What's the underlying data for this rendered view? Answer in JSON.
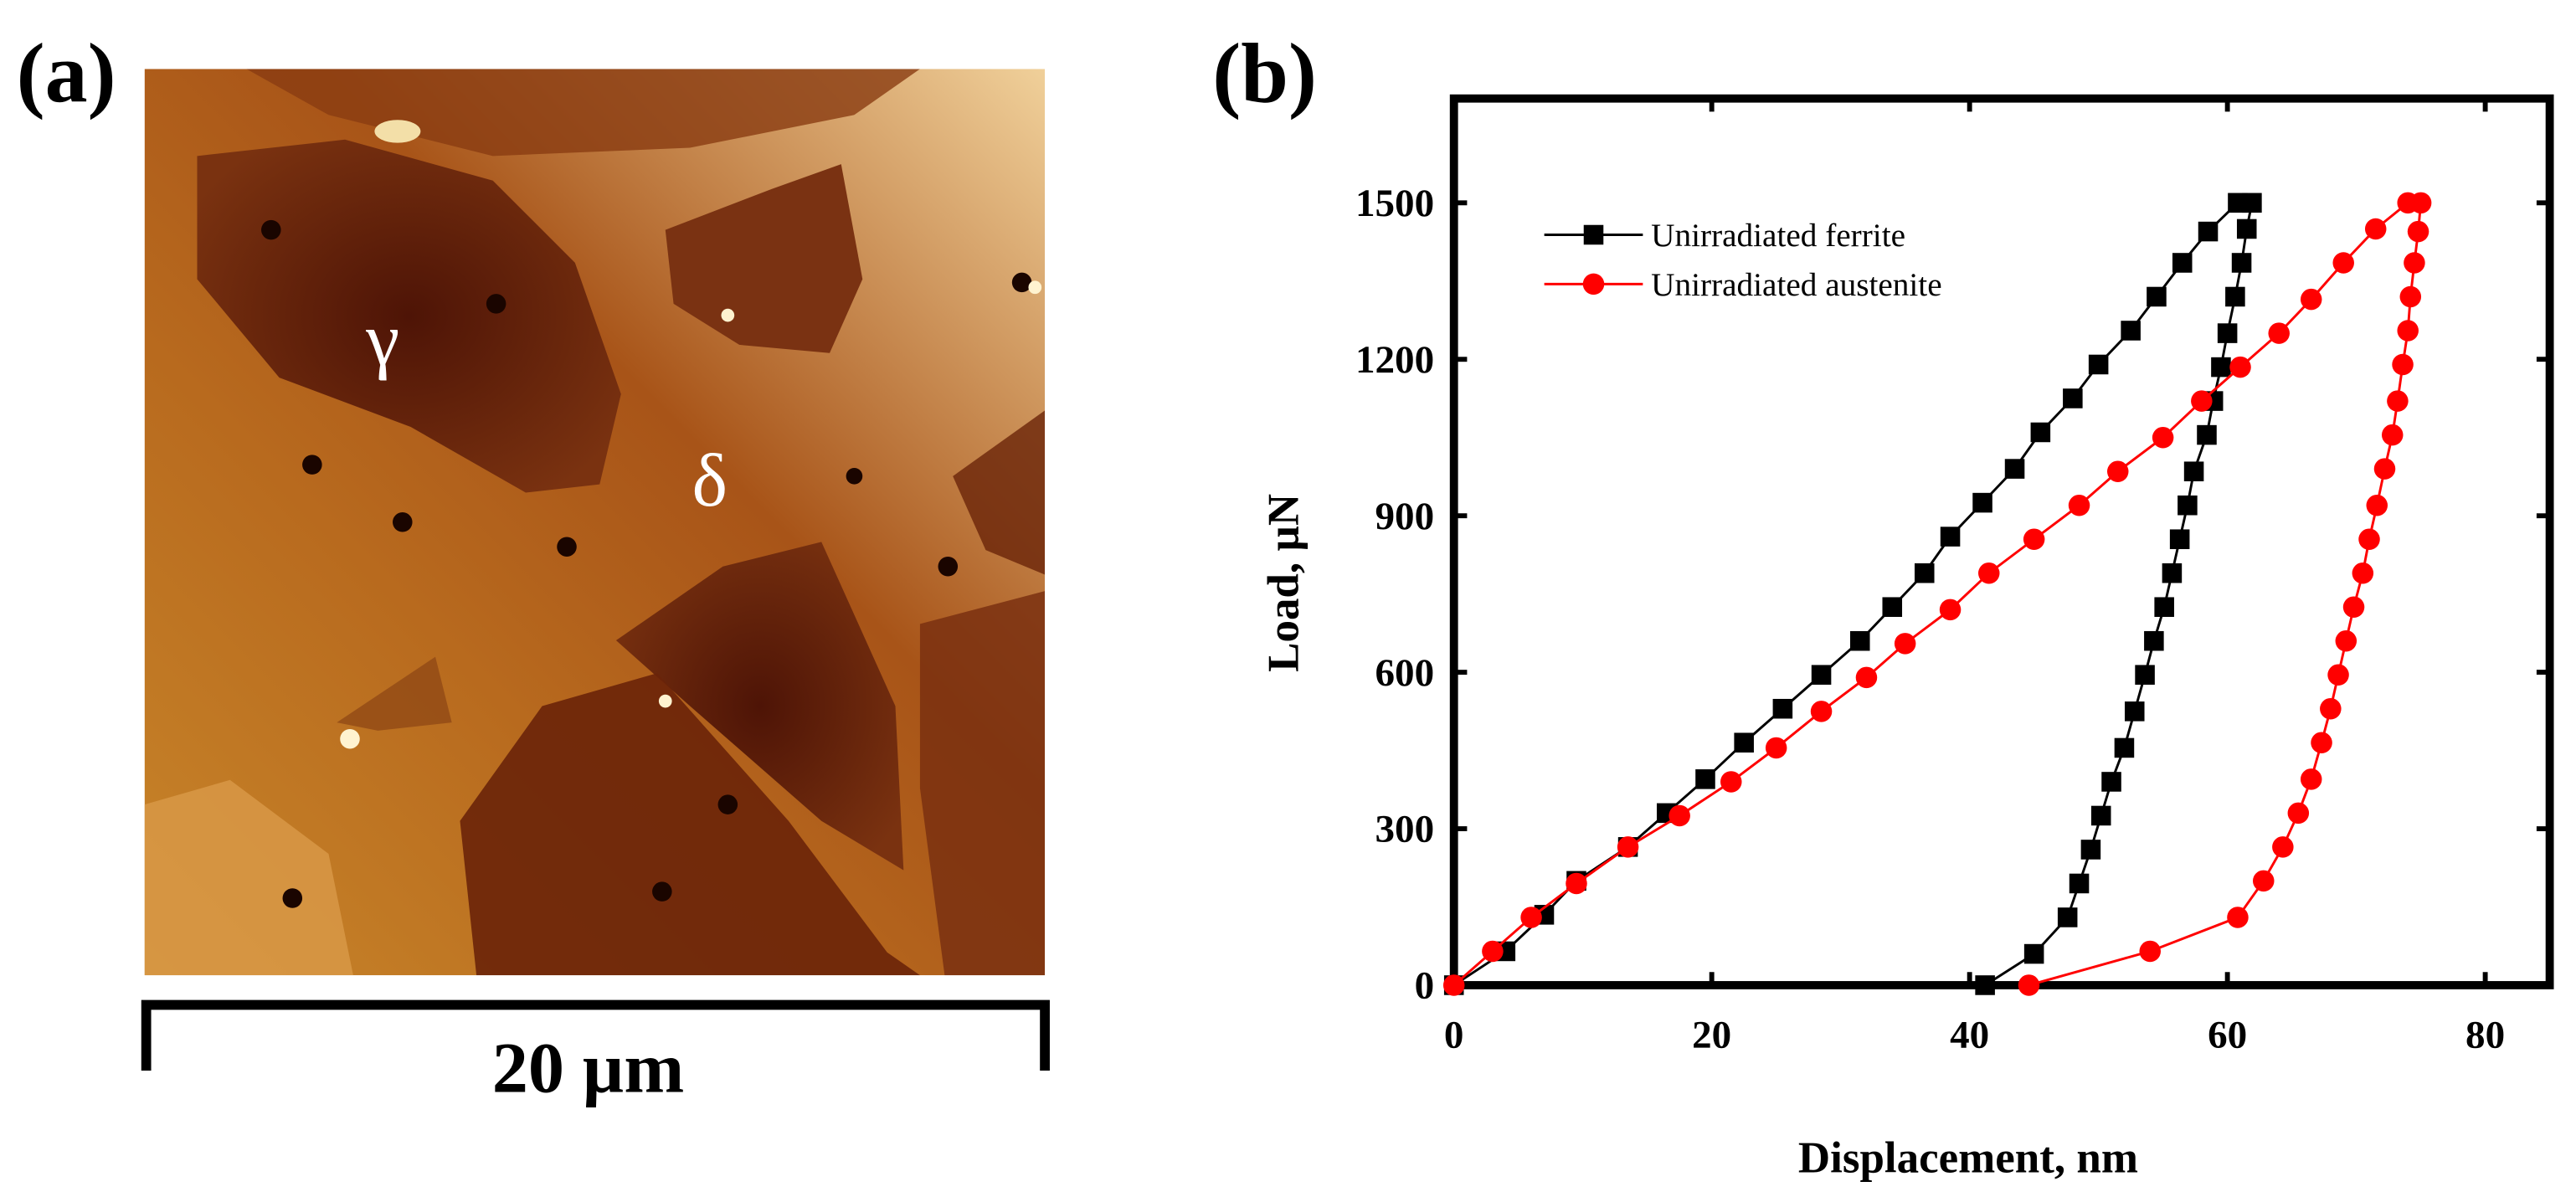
{
  "panel_a": {
    "label": "(a)",
    "annotations": [
      "γ",
      "δ"
    ],
    "scale_bar": "20 µm"
  },
  "chart_data": {
    "type": "line",
    "panel_label": "(b)",
    "x_label": "Displacement, nm",
    "y_label": "Load, µN",
    "xlim": [
      0,
      85
    ],
    "ylim": [
      0,
      1700
    ],
    "xticks": [
      0,
      20,
      40,
      60,
      80
    ],
    "yticks": [
      0,
      300,
      600,
      900,
      1200,
      1500
    ],
    "legend": "upper left",
    "series": [
      {
        "name": "Unirradiated ferrite",
        "color": "#000000",
        "marker": "square",
        "x": [
          0,
          4,
          7,
          9.5,
          13.5,
          16.5,
          19.5,
          22.5,
          25.5,
          28.5,
          31.5,
          34,
          36.5,
          38.5,
          41,
          43.5,
          45.5,
          48,
          50,
          52.5,
          54.5,
          56.5,
          58.5,
          60.8,
          61.9,
          61.5,
          61.1,
          60.6,
          60,
          59.5,
          58.9,
          58.4,
          57.4,
          56.9,
          56.3,
          55.7,
          55.1,
          54.3,
          53.6,
          52.8,
          52,
          51,
          50.2,
          49.4,
          48.5,
          47.6,
          45,
          41.2
        ],
        "values": [
          0,
          65,
          135,
          200,
          265,
          330,
          395,
          465,
          530,
          595,
          660,
          725,
          790,
          860,
          925,
          990,
          1060,
          1125,
          1190,
          1255,
          1320,
          1385,
          1445,
          1500,
          1500,
          1450,
          1385,
          1320,
          1250,
          1185,
          1120,
          1055,
          985,
          920,
          855,
          790,
          725,
          660,
          595,
          525,
          455,
          390,
          325,
          260,
          195,
          130,
          60,
          0
        ]
      },
      {
        "name": "Unirradiated austenite",
        "color": "#ff0000",
        "marker": "circle",
        "x": [
          0,
          3,
          6,
          9.5,
          13.5,
          17.5,
          21.5,
          25,
          28.5,
          32,
          35,
          38.5,
          41.5,
          45,
          48.5,
          51.5,
          55,
          58,
          61,
          64,
          66.5,
          69,
          71.5,
          74,
          75,
          74.8,
          74.5,
          74.2,
          74,
          73.6,
          73.2,
          72.8,
          72.2,
          71.6,
          71,
          70.5,
          69.8,
          69.2,
          68.6,
          68,
          67.3,
          66.5,
          65.5,
          64.3,
          62.8,
          60.8,
          54,
          44.6
        ],
        "values": [
          0,
          65,
          130,
          195,
          265,
          325,
          390,
          455,
          525,
          590,
          655,
          720,
          790,
          855,
          920,
          985,
          1050,
          1120,
          1185,
          1250,
          1315,
          1385,
          1450,
          1500,
          1500,
          1445,
          1385,
          1320,
          1255,
          1190,
          1120,
          1055,
          990,
          920,
          855,
          790,
          725,
          660,
          595,
          530,
          465,
          395,
          330,
          265,
          200,
          130,
          65,
          0
        ]
      }
    ]
  }
}
